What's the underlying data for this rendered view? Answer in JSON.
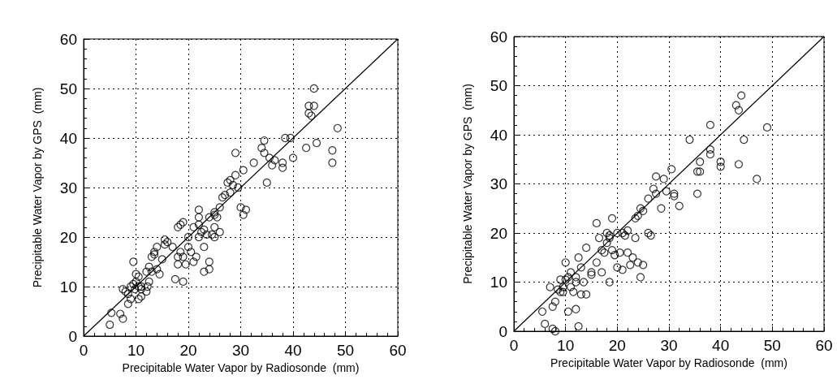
{
  "chart_data": [
    {
      "type": "scatter",
      "xlabel": "Precipitable Water Vapor by Radiosonde  (mm)",
      "ylabel": "Precipitable Water Vapor by GPS  (mm)",
      "xlim": [
        0,
        60
      ],
      "ylim": [
        0,
        60
      ],
      "xticks": [
        0,
        10,
        20,
        30,
        40,
        50,
        60
      ],
      "yticks": [
        0,
        10,
        20,
        30,
        40,
        50,
        60
      ],
      "grid": true,
      "marker": "circle",
      "series": [
        {
          "color": "#000000",
          "x": [
            5,
            5.3,
            7,
            7.5,
            8,
            7.5,
            8.5,
            8.5,
            9,
            9,
            9.5,
            9.8,
            10,
            10,
            9.5,
            10.5,
            11,
            10.5,
            11,
            12,
            12.2,
            12.5,
            12.5,
            13,
            13,
            13.5,
            14,
            14,
            14.5,
            15,
            15.5,
            15.5,
            17.5,
            18,
            18,
            18.5,
            18.5,
            19,
            19,
            19.5,
            20,
            20,
            20.5,
            21,
            21,
            21.5,
            22,
            22,
            22,
            22.5,
            23,
            23,
            23.5,
            24,
            24,
            24,
            24.5,
            25,
            25,
            25,
            25.5,
            26,
            27,
            27.5,
            28,
            28.5,
            29,
            29,
            29.5,
            30,
            30.5,
            30.5,
            31,
            32.5,
            34,
            34.5,
            34.5,
            35,
            35.5,
            36,
            36.5,
            38,
            38,
            38.5,
            39.5,
            40,
            42.5,
            43,
            43,
            43.5,
            44,
            44,
            44.5,
            47.5,
            47.5,
            48.5,
            18,
            19,
            25,
            26.5,
            28,
            13.5,
            16,
            10.5,
            11,
            12,
            17,
            22,
            26,
            23
          ],
          "values": [
            2.3,
            4.7,
            4.5,
            3.5,
            9,
            9.5,
            8.5,
            6.5,
            7.5,
            10,
            10.5,
            9.5,
            11,
            12.5,
            15,
            7.5,
            8,
            12,
            10,
            9,
            10,
            11,
            14,
            13,
            16,
            17,
            13.5,
            18,
            12.5,
            15.5,
            18.5,
            19.5,
            11.5,
            14.5,
            16,
            17,
            22.5,
            16,
            11,
            14.5,
            18,
            20,
            17,
            22,
            15,
            16,
            20,
            22.5,
            25.5,
            21,
            18,
            13,
            20.5,
            24,
            13.5,
            15,
            20.5,
            22,
            25,
            20,
            24,
            26,
            28.5,
            31,
            31.5,
            30.5,
            32.5,
            37,
            30,
            26,
            24.5,
            33.5,
            25.5,
            35,
            38,
            37,
            39.5,
            31,
            36,
            34.5,
            35.5,
            35,
            34,
            40,
            40,
            36,
            38,
            45,
            46.5,
            44.5,
            46.5,
            50,
            39,
            37.5,
            35,
            42,
            22,
            23,
            24.5,
            28,
            29,
            16.5,
            19,
            10,
            9.5,
            13,
            18,
            24,
            21,
            21.5
          ]
        },
        {
          "type": "line",
          "color": "#000000",
          "x": [
            0,
            60
          ],
          "values": [
            0,
            60
          ],
          "marker": "none"
        }
      ]
    },
    {
      "type": "scatter",
      "xlabel": "Precipitable Water Vapor by Radiosonde  (mm)",
      "ylabel": "Precipitable Water Vapor by GPS  (mm)",
      "xlim": [
        0,
        60
      ],
      "ylim": [
        0,
        60
      ],
      "xticks": [
        0,
        10,
        20,
        30,
        40,
        50,
        60
      ],
      "yticks": [
        0,
        10,
        20,
        30,
        40,
        50,
        60
      ],
      "grid": true,
      "marker": "circle",
      "series": [
        {
          "color": "#000000",
          "x": [
            5.5,
            6,
            7.5,
            7.5,
            8,
            8,
            8.5,
            9,
            9,
            9.5,
            10,
            10,
            10.5,
            10.5,
            11,
            11,
            11.5,
            12,
            12,
            12.5,
            12.5,
            13,
            13,
            13.5,
            14,
            14,
            15,
            16,
            16.5,
            17,
            17.5,
            18,
            18,
            18.5,
            18.5,
            19,
            19,
            19.5,
            20,
            20.5,
            21,
            21,
            21.5,
            22,
            22,
            22.5,
            23,
            23.5,
            24,
            24,
            24.5,
            24.5,
            25,
            25,
            26,
            26.5,
            26,
            27,
            27.5,
            27.5,
            28.5,
            29,
            29.5,
            30.5,
            31,
            31,
            32,
            34,
            35.5,
            35.5,
            36,
            36,
            38,
            38,
            38,
            40,
            40,
            43,
            43.5,
            43.5,
            44,
            44.5,
            47,
            49,
            7,
            9.5,
            12,
            15,
            16,
            20,
            23.5,
            17,
            18.5
          ],
          "values": [
            4,
            1.5,
            0.5,
            5,
            0,
            6,
            8.5,
            8,
            10.5,
            9,
            10.5,
            14,
            11,
            4,
            9,
            12,
            8,
            4.5,
            11,
            1,
            15,
            13,
            7.5,
            10,
            7.5,
            17,
            12,
            22,
            19,
            12,
            16,
            20,
            18,
            19.5,
            10,
            23,
            16.5,
            15.5,
            13,
            16,
            20,
            12.5,
            19.5,
            20.5,
            16,
            13.5,
            15,
            19,
            23.5,
            14,
            11,
            25,
            24.5,
            13.5,
            20,
            19.5,
            27,
            29,
            31.5,
            28,
            25,
            31,
            28.5,
            33,
            27.5,
            28,
            25.5,
            39,
            32.5,
            28,
            34.5,
            32.5,
            42,
            37,
            36,
            34.5,
            33.5,
            46,
            34,
            45,
            48,
            39,
            31,
            41.5,
            9,
            8,
            10,
            11.5,
            14,
            20,
            23,
            16.5,
            19
          ]
        },
        {
          "type": "line",
          "color": "#000000",
          "x": [
            0,
            60
          ],
          "values": [
            0,
            60
          ],
          "marker": "none"
        }
      ]
    }
  ]
}
